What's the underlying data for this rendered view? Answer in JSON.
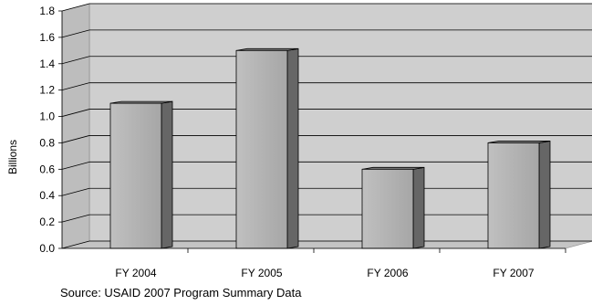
{
  "chart_data": {
    "type": "bar",
    "categories": [
      "FY 2004",
      "FY 2005",
      "FY 2006",
      "FY 2007"
    ],
    "values": [
      1.1,
      1.5,
      0.6,
      0.8
    ],
    "ylabel": "Billions",
    "xlabel": "",
    "ylim": [
      0,
      1.8
    ],
    "yticks": [
      "0.0",
      "0.2",
      "0.4",
      "0.6",
      "0.8",
      "1.0",
      "1.2",
      "1.4",
      "1.6",
      "1.8"
    ],
    "grid": true,
    "legend": "none",
    "style": "3d-column",
    "colors": {
      "bar_front": "#b2b2b2",
      "bar_side": "#666666",
      "bar_top": "#8a8a8a",
      "plot_back_wall": "#cfcfcf",
      "plot_floor": "#c4c4c4",
      "gridline": "#000000"
    }
  },
  "footer": {
    "source_text": "Source: USAID 2007 Program Summary Data"
  }
}
